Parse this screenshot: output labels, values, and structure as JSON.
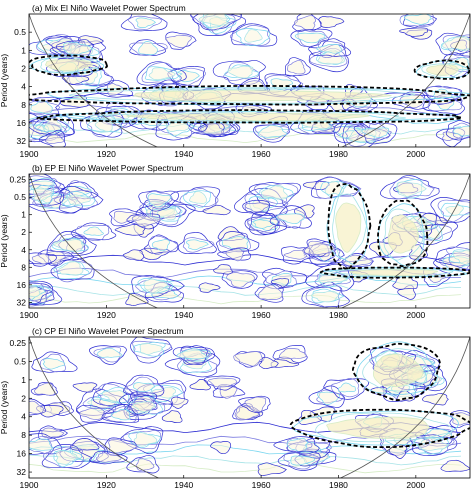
{
  "figure": {
    "ylabel": "Period (years)"
  },
  "chart_data": [
    {
      "type": "heatmap",
      "title": "(a) Mix El Niño Wavelet Power Spectrum",
      "xlabel": "",
      "ylabel": "Period (years)",
      "x_ticks": [
        1900,
        1920,
        1940,
        1960,
        1980,
        2000
      ],
      "y_ticks": [
        "0.5",
        "1",
        "2",
        "4",
        "8",
        "16",
        "32"
      ],
      "y_tick_values": [
        0.5,
        1,
        2,
        4,
        8,
        16,
        32
      ],
      "xlim": [
        1900,
        2014
      ],
      "ylim": [
        0.25,
        40
      ],
      "y_scale": "log2",
      "y_inverted": true,
      "contour_colors": [
        "#2d2dd2",
        "#7a7ae0",
        "#7ad6ef",
        "#a6e3e7",
        "#d6ecc6",
        "#f2e7b0"
      ],
      "significance_color": "#000000",
      "significant_regions": [
        {
          "x_range": [
            1900,
            2014
          ],
          "period_range": [
            4,
            8
          ]
        },
        {
          "x_range": [
            1904,
            2012
          ],
          "period_range": [
            10,
            16
          ]
        },
        {
          "x_range": [
            1900,
            1920
          ],
          "period_range": [
            1.2,
            2.5
          ]
        },
        {
          "x_range": [
            2000,
            2014
          ],
          "period_range": [
            1.5,
            3
          ]
        }
      ]
    },
    {
      "type": "heatmap",
      "title": "(b) EP El Niño Wavelet Power Spectrum",
      "xlabel": "",
      "ylabel": "Period (years)",
      "x_ticks": [
        1900,
        1920,
        1940,
        1960,
        1980,
        2000
      ],
      "y_ticks": [
        "0.25",
        "0.5",
        "1",
        "2",
        "4",
        "8",
        "16",
        "32"
      ],
      "y_tick_values": [
        0.25,
        0.5,
        1,
        2,
        4,
        8,
        16,
        32
      ],
      "xlim": [
        1900,
        2014
      ],
      "ylim": [
        0.2,
        40
      ],
      "y_scale": "log2",
      "y_inverted": true,
      "contour_colors": [
        "#2d2dd2",
        "#7a7ae0",
        "#7ad6ef",
        "#a6e3e7",
        "#d6ecc6",
        "#f2e7b0"
      ],
      "significance_color": "#000000",
      "significant_regions": [
        {
          "x_range": [
            1977,
            1988
          ],
          "period_range": [
            0.3,
            8
          ]
        },
        {
          "x_range": [
            1990,
            2003
          ],
          "period_range": [
            0.6,
            8
          ]
        },
        {
          "x_range": [
            1975,
            2014
          ],
          "period_range": [
            8,
            12
          ]
        }
      ]
    },
    {
      "type": "heatmap",
      "title": "(c) CP El Niño Wavelet Power Spectrum",
      "xlabel": "",
      "ylabel": "Period (years)",
      "x_ticks": [
        1900,
        1920,
        1940,
        1960,
        1980,
        2000
      ],
      "y_ticks": [
        "0.25",
        "0.5",
        "1",
        "2",
        "4",
        "8",
        "16",
        "32"
      ],
      "y_tick_values": [
        0.25,
        0.5,
        1,
        2,
        4,
        8,
        16,
        32
      ],
      "xlim": [
        1900,
        2014
      ],
      "ylim": [
        0.2,
        40
      ],
      "y_scale": "log2",
      "y_inverted": true,
      "contour_colors": [
        "#2d2dd2",
        "#7a7ae0",
        "#7ad6ef",
        "#a6e3e7",
        "#d6ecc6",
        "#f2e7b0"
      ],
      "significance_color": "#000000",
      "significant_regions": [
        {
          "x_range": [
            1968,
            2014
          ],
          "period_range": [
            3,
            12
          ]
        },
        {
          "x_range": [
            1984,
            2006
          ],
          "period_range": [
            0.25,
            2
          ]
        }
      ]
    }
  ]
}
